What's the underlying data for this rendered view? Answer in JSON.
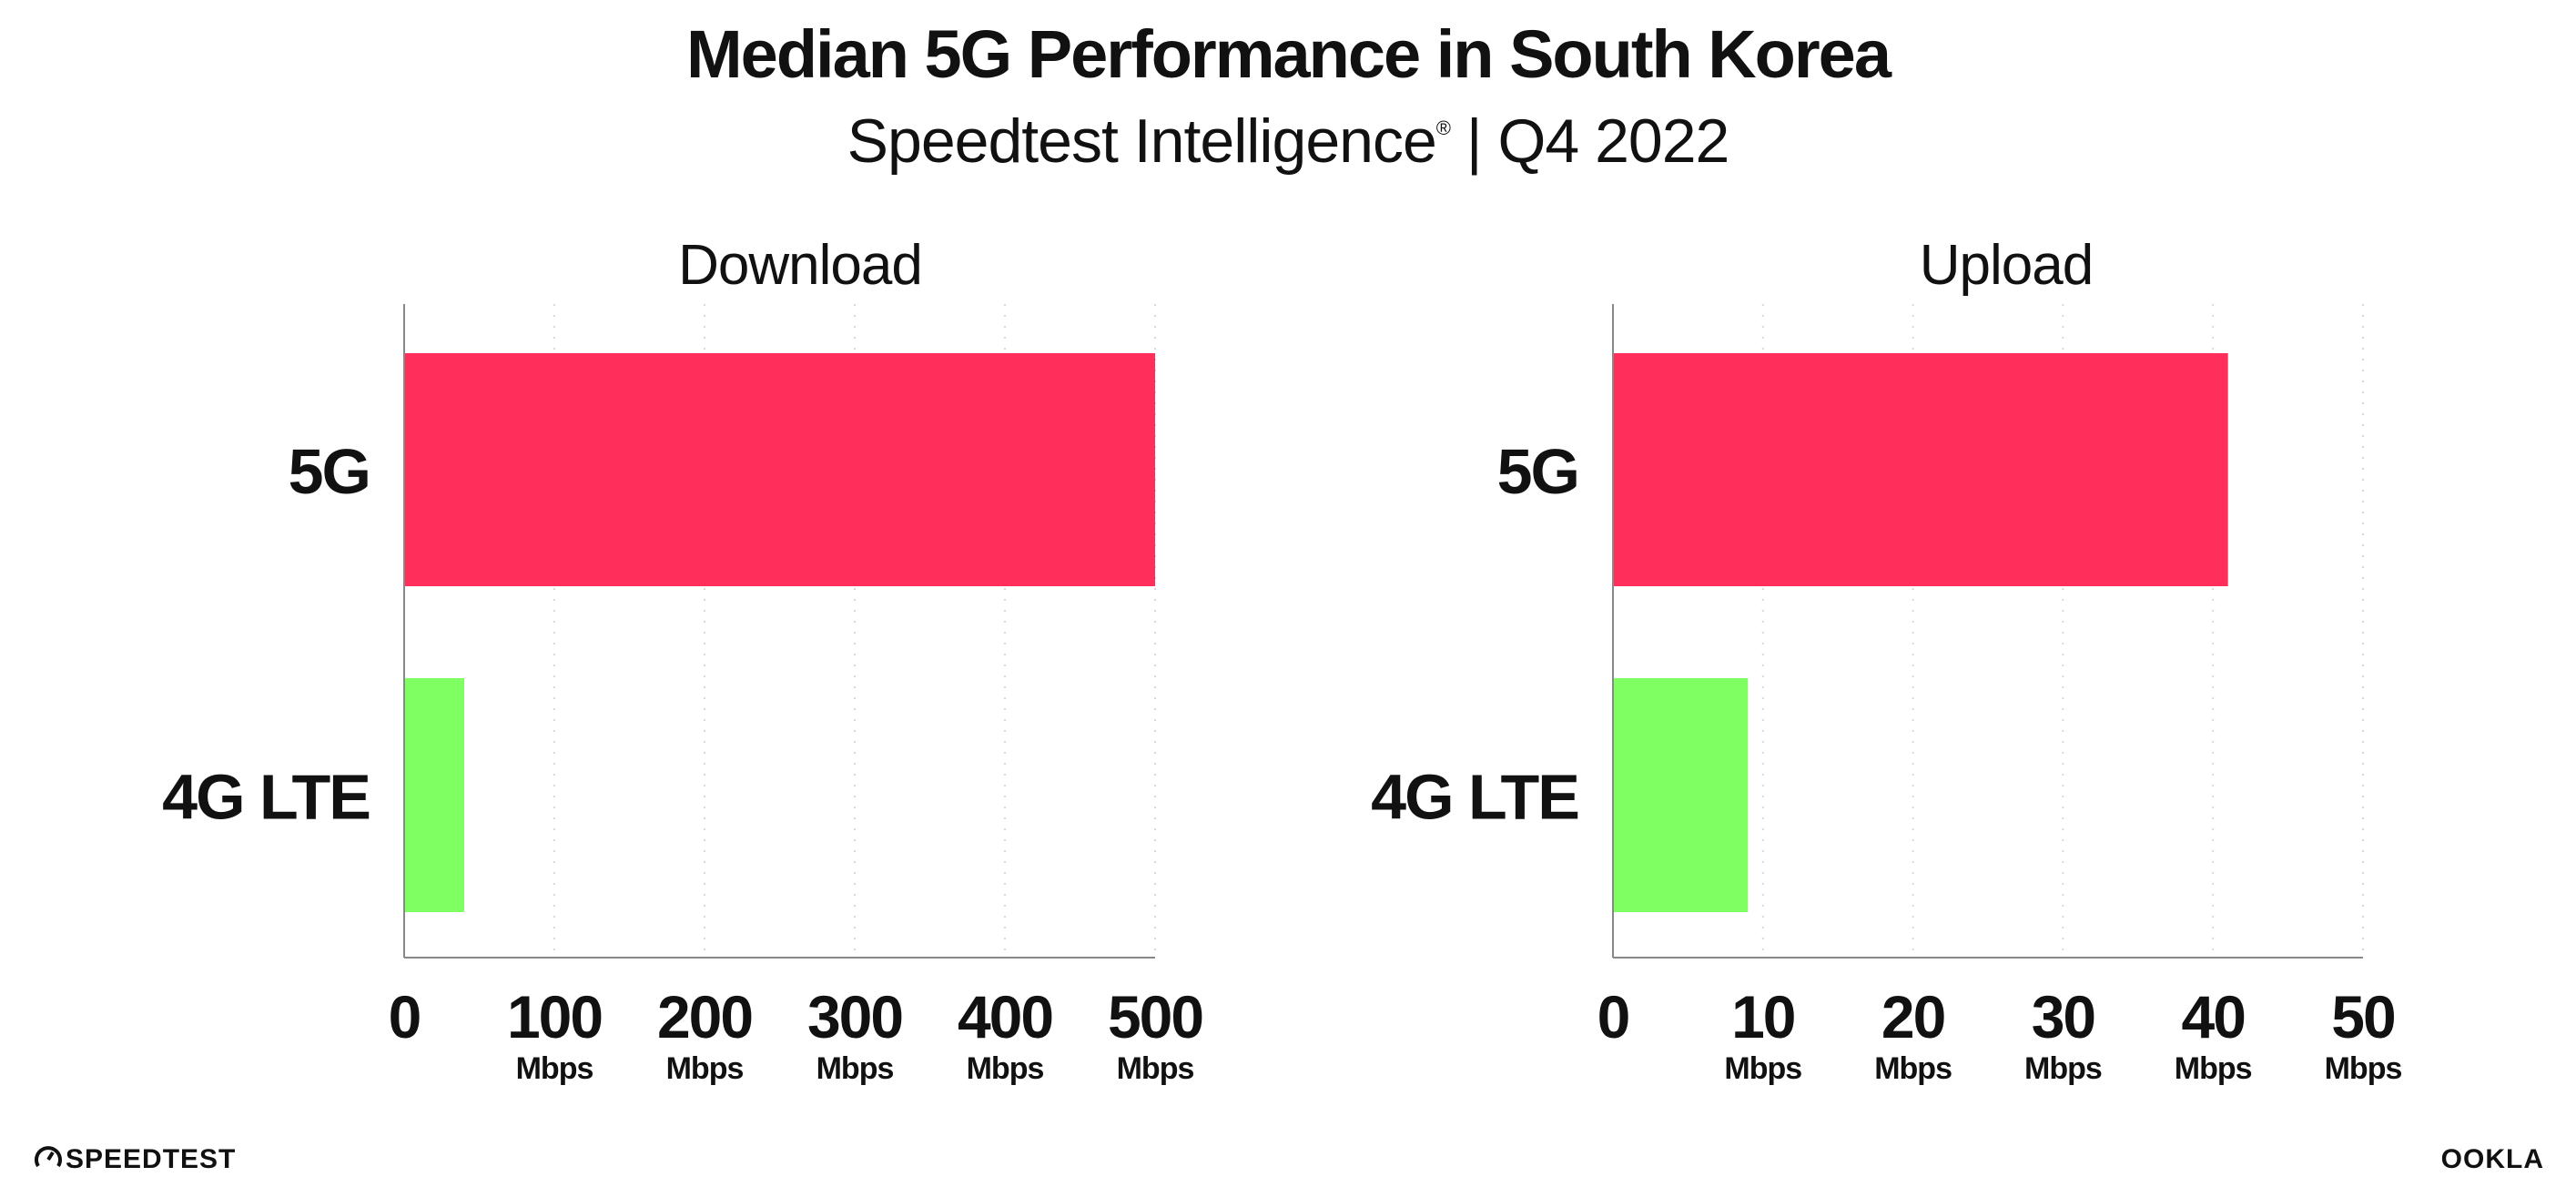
{
  "header": {
    "title": "Median 5G Performance in South Korea",
    "subtitle_brand": "Speedtest Intelligence",
    "subtitle_reg": "®",
    "subtitle_period": " | Q4 2022"
  },
  "colors": {
    "5G": "#ff2e5b",
    "4G LTE": "#80ff62",
    "axis": "#888888",
    "grid": "#d8d8d8",
    "text": "#111111"
  },
  "chart_data": [
    {
      "type": "bar",
      "orientation": "horizontal",
      "title": "Download",
      "categories": [
        "5G",
        "4G LTE"
      ],
      "values": [
        500,
        40
      ],
      "xlim": [
        0,
        500
      ],
      "ticks": [
        0,
        100,
        200,
        300,
        400,
        500
      ],
      "tick_labels": [
        "0",
        "100",
        "200",
        "300",
        "400",
        "500"
      ],
      "unit": "Mbps",
      "grid": "vertical dotted"
    },
    {
      "type": "bar",
      "orientation": "horizontal",
      "title": "Upload",
      "categories": [
        "5G",
        "4G LTE"
      ],
      "values": [
        41,
        9
      ],
      "xlim": [
        0,
        50
      ],
      "ticks": [
        0,
        10,
        20,
        30,
        40,
        50
      ],
      "tick_labels": [
        "0",
        "10",
        "20",
        "30",
        "40",
        "50"
      ],
      "unit": "Mbps",
      "grid": "vertical dotted"
    }
  ],
  "footer": {
    "left_logo": "SPEEDTEST",
    "right_logo": "OOKLA"
  }
}
